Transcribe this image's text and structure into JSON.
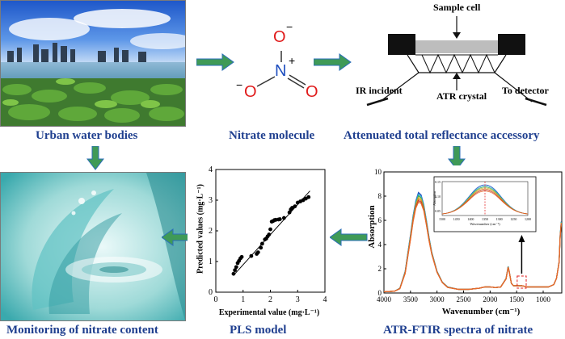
{
  "captions": {
    "urban": "Urban water bodies",
    "nitrate": "Nitrate molecule",
    "atr": "Attenuated total reflectance accessory",
    "ftir": "ATR-FTIR spectra of nitrate",
    "pls": "PLS model",
    "monitor": "Monitoring of nitrate content"
  },
  "molecule": {
    "top_o": "O",
    "top_o_charge": "−",
    "n": "N",
    "n_charge": "+",
    "left_o": "O",
    "left_o_charge": "−",
    "right_o": "O"
  },
  "atr_labels": {
    "sample_cell": "Sample cell",
    "ir_incident": "IR incident",
    "atr_crystal": "ATR crystal",
    "to_detector": "To detector"
  },
  "spectrum": {
    "ylabel": "Absorption",
    "xlabel": "Wavenumber (cm⁻¹)",
    "yticks": [
      "0",
      "2",
      "4",
      "6",
      "8",
      "10"
    ],
    "xticks": [
      "4000",
      "3500",
      "3000",
      "2500",
      "2000",
      "1500",
      "1000"
    ],
    "inset": {
      "ylabel": "Absorption",
      "xlabel": "Wavenumber (cm⁻¹)",
      "yticks": [
        "0.15",
        "0.10",
        "0.05"
      ],
      "xticks": [
        "1500",
        "1450",
        "1400",
        "1350",
        "1300",
        "1250",
        "1200"
      ]
    }
  },
  "pls": {
    "ylabel": "Predicted values (mg·L⁻¹)",
    "xlabel": "Experimental value (mg·L⁻¹)",
    "xticks": [
      "0",
      "1",
      "2",
      "3",
      "4"
    ],
    "yticks": [
      "0",
      "1",
      "2",
      "3",
      "4"
    ]
  },
  "colors": {
    "caption": "#1f3f8f",
    "arrow": "#3f9a57",
    "nitrate_n": "#1f4fbf",
    "nitrate_o": "#e01b1b"
  },
  "chart_data": [
    {
      "type": "scatter",
      "xlabel": "Experimental value (mg·L⁻¹)",
      "ylabel": "Predicted values (mg·L⁻¹)",
      "xlim": [
        0,
        4
      ],
      "ylim": [
        0,
        4
      ],
      "points": [
        [
          0.65,
          0.6
        ],
        [
          0.7,
          0.72
        ],
        [
          0.75,
          0.82
        ],
        [
          0.8,
          0.95
        ],
        [
          0.85,
          1.02
        ],
        [
          0.9,
          1.1
        ],
        [
          0.95,
          1.15
        ],
        [
          1.3,
          1.18
        ],
        [
          1.5,
          1.25
        ],
        [
          1.55,
          1.3
        ],
        [
          1.65,
          1.45
        ],
        [
          1.7,
          1.58
        ],
        [
          1.8,
          1.72
        ],
        [
          1.85,
          1.75
        ],
        [
          1.9,
          1.82
        ],
        [
          1.95,
          1.88
        ],
        [
          2.0,
          2.05
        ],
        [
          2.05,
          2.3
        ],
        [
          2.1,
          2.32
        ],
        [
          2.15,
          2.35
        ],
        [
          2.2,
          2.36
        ],
        [
          2.3,
          2.37
        ],
        [
          2.35,
          2.38
        ],
        [
          2.5,
          2.42
        ],
        [
          2.7,
          2.6
        ],
        [
          2.75,
          2.7
        ],
        [
          2.8,
          2.75
        ],
        [
          2.9,
          2.8
        ],
        [
          3.0,
          2.92
        ],
        [
          3.1,
          2.96
        ],
        [
          3.2,
          3.0
        ],
        [
          3.3,
          3.05
        ],
        [
          3.4,
          3.1
        ]
      ],
      "fit_line": [
        [
          0.65,
          0.55
        ],
        [
          3.45,
          3.3
        ]
      ]
    },
    {
      "type": "line",
      "xlabel": "Wavenumber (cm⁻¹)",
      "ylabel": "Absorption",
      "xlim": [
        4000,
        650
      ],
      "ylim": [
        0,
        10
      ],
      "x": [
        4000,
        3800,
        3700,
        3600,
        3500,
        3450,
        3400,
        3350,
        3300,
        3250,
        3200,
        3150,
        3100,
        3000,
        2900,
        2800,
        2600,
        2400,
        2200,
        2100,
        2000,
        1900,
        1800,
        1700,
        1660,
        1640,
        1600,
        1560,
        1500,
        1400,
        1300,
        1200,
        1100,
        1000,
        900,
        800,
        750,
        700,
        680,
        660
      ],
      "series": [
        {
          "values": [
            0.1,
            0.15,
            0.4,
            1.8,
            4.8,
            6.4,
            7.6,
            8.3,
            8.1,
            7.3,
            6.0,
            4.6,
            3.4,
            1.8,
            0.9,
            0.5,
            0.3,
            0.3,
            0.4,
            0.5,
            0.5,
            0.45,
            0.5,
            1.2,
            2.2,
            1.8,
            0.8,
            0.6,
            0.6,
            0.6,
            0.5,
            0.5,
            0.5,
            0.5,
            0.5,
            0.7,
            1.2,
            2.6,
            4.8,
            5.9
          ]
        },
        {
          "values": [
            0.1,
            0.15,
            0.35,
            1.6,
            4.4,
            5.9,
            7.0,
            7.5,
            7.4,
            6.8,
            5.6,
            4.3,
            3.2,
            1.7,
            0.85,
            0.45,
            0.3,
            0.3,
            0.4,
            0.5,
            0.5,
            0.45,
            0.5,
            1.15,
            2.1,
            1.75,
            0.8,
            0.6,
            0.6,
            0.6,
            0.5,
            0.5,
            0.5,
            0.5,
            0.5,
            0.7,
            1.2,
            2.5,
            4.6,
            5.7
          ]
        }
      ]
    }
  ]
}
